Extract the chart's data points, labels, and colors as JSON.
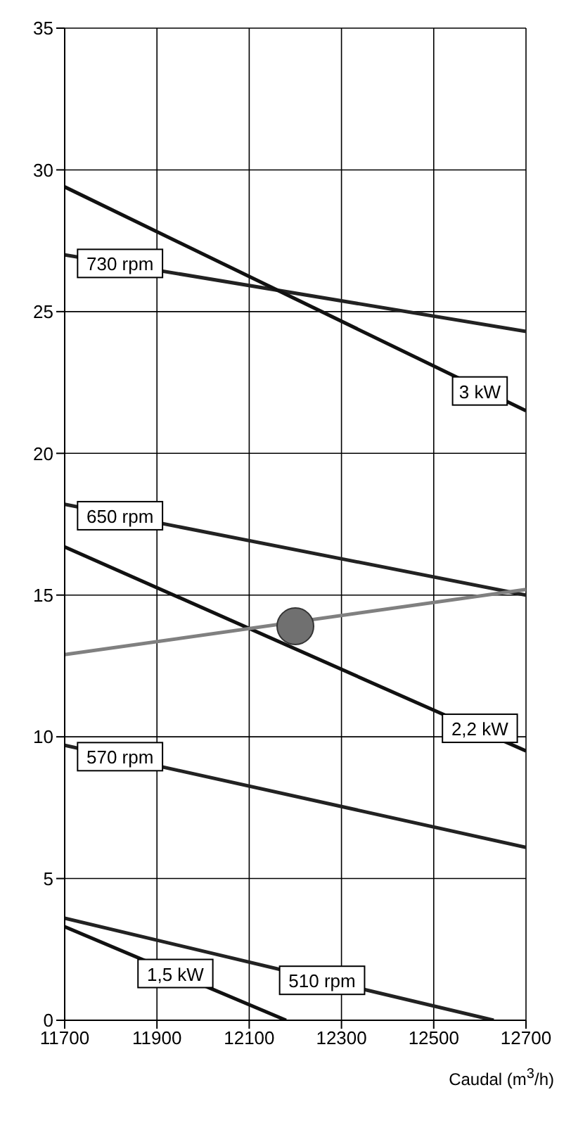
{
  "chart_data": {
    "type": "line",
    "xlabel": "Caudal (m$^{3}$/h)",
    "xlim": [
      11700,
      12700
    ],
    "xticks": [
      11700,
      11900,
      12100,
      12300,
      12500,
      12700
    ],
    "ylim": [
      0,
      35
    ],
    "yticks": [
      0,
      5,
      10,
      15,
      20,
      25,
      30,
      35
    ],
    "grid": true,
    "legend": false,
    "line_style": "solid",
    "marker": "none",
    "series": [
      {
        "color": "#222222",
        "x": [
          11700,
          12700
        ],
        "values": [
          27.0,
          24.3
        ]
      },
      {
        "color": "#111111",
        "x": [
          11700,
          12700
        ],
        "values": [
          29.4,
          21.5
        ]
      },
      {
        "color": "#222222",
        "x": [
          11700,
          12700
        ],
        "values": [
          18.2,
          15.0
        ]
      },
      {
        "color": "#111111",
        "x": [
          11700,
          12700
        ],
        "values": [
          16.7,
          9.5
        ]
      },
      {
        "color": "#808080",
        "x": [
          11700,
          12700
        ],
        "values": [
          12.9,
          15.2
        ]
      },
      {
        "color": "#222222",
        "x": [
          11700,
          12700
        ],
        "values": [
          9.7,
          6.1
        ]
      },
      {
        "color": "#222222",
        "x": [
          11700,
          12630
        ],
        "values": [
          3.6,
          0
        ]
      },
      {
        "color": "#111111",
        "x": [
          11700,
          12180
        ],
        "values": [
          3.3,
          0
        ]
      },
      {
        "type": "scatter",
        "marker": "circle",
        "color": "#707070",
        "x": [
          12200
        ],
        "values": [
          13.9
        ]
      }
    ],
    "annotations": [
      {
        "text": "730 rpm",
        "x": 11820,
        "y": 26.7
      },
      {
        "text": "3 kW",
        "x": 12600,
        "y": 22.2
      },
      {
        "text": "650 rpm",
        "x": 11820,
        "y": 17.8
      },
      {
        "text": "2,2 kW",
        "x": 12600,
        "y": 10.3
      },
      {
        "text": "570 rpm",
        "x": 11820,
        "y": 9.3
      },
      {
        "text": "510 rpm",
        "x": 12258,
        "y": 1.41
      },
      {
        "text": "1,5 kW",
        "x": 11940,
        "y": 1.65
      }
    ]
  }
}
